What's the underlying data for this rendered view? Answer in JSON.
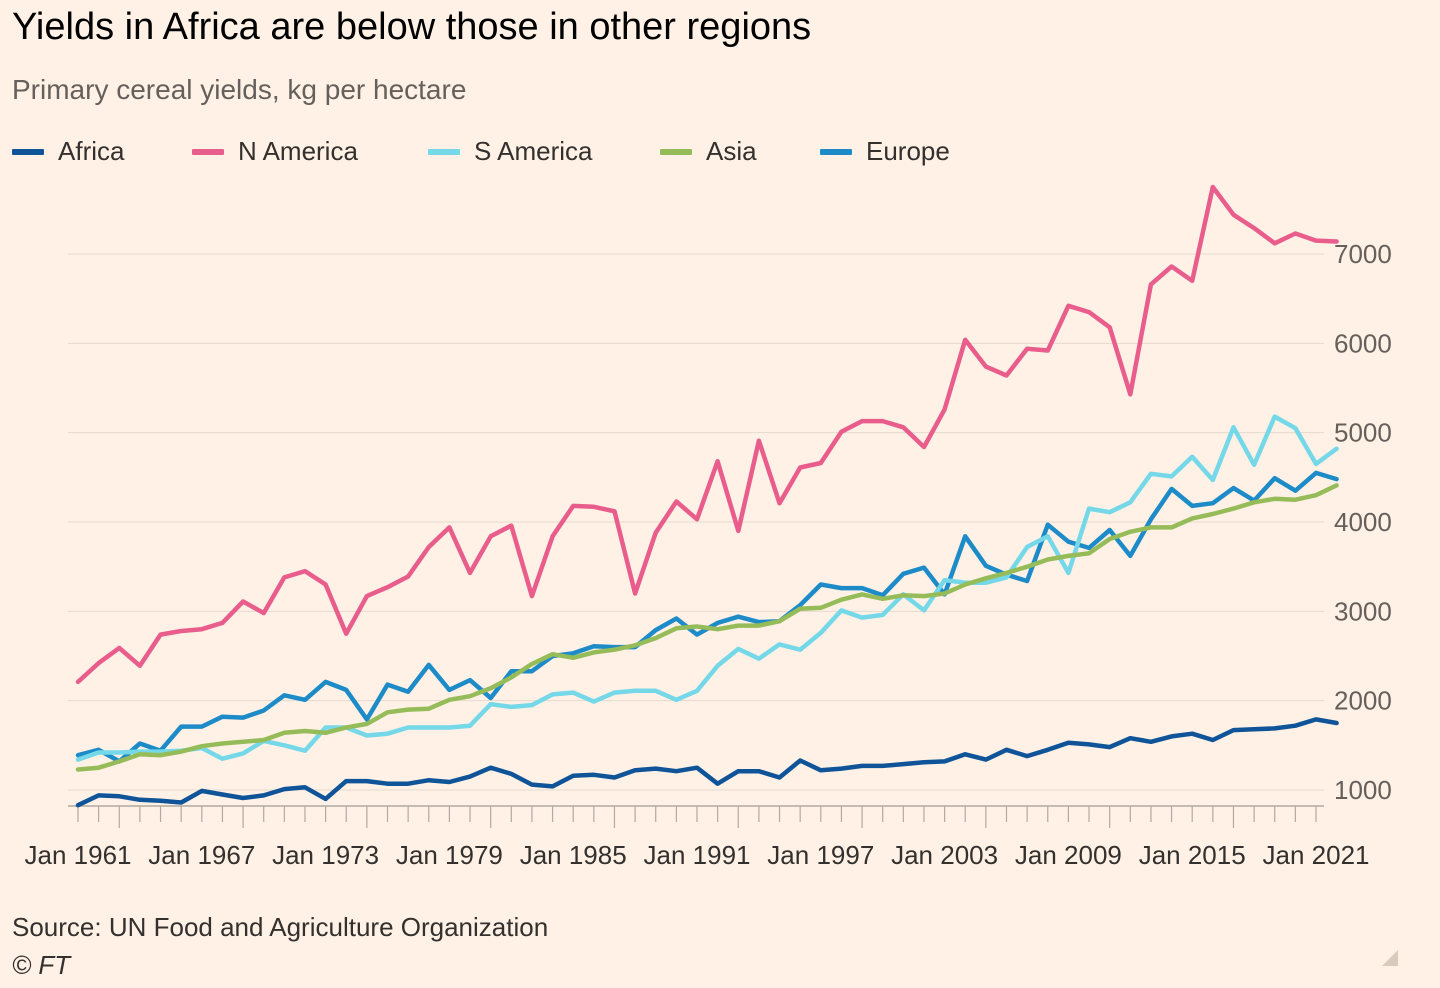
{
  "title": "Yields in Africa are below those in other regions",
  "subtitle": "Primary cereal yields, kg per hectare",
  "source": "Source: UN Food and Agriculture Organization",
  "credit": "© FT",
  "legend": [
    {
      "name": "Africa",
      "color": "#0f5499"
    },
    {
      "name": "N America",
      "color": "#e95d8c"
    },
    {
      "name": "S America",
      "color": "#75d8e8"
    },
    {
      "name": "Asia",
      "color": "#96bc59"
    },
    {
      "name": "Europe",
      "color": "#1e8bc9"
    }
  ],
  "chart_data": {
    "type": "line",
    "title": "Yields in Africa are below those in other regions",
    "subtitle": "Primary cereal yields, kg per hectare",
    "x_start": 1961,
    "x_end": 2021,
    "x_tick_labels": [
      "Jan 1961",
      "Jan 1967",
      "Jan 1973",
      "Jan 1979",
      "Jan 1985",
      "Jan 1991",
      "Jan 1997",
      "Jan 2003",
      "Jan 2009",
      "Jan 2015",
      "Jan 2021"
    ],
    "x_ticks": [
      1961,
      1967,
      1973,
      1979,
      1985,
      1991,
      1997,
      2003,
      2009,
      2015,
      2021
    ],
    "y_ticks": [
      1000,
      2000,
      3000,
      4000,
      5000,
      6000,
      7000
    ],
    "ylim": [
      820,
      7800
    ],
    "y_axis_side": "right",
    "grid": true,
    "legend_position": "top-left",
    "series": [
      {
        "name": "Africa",
        "color": "#0f5499",
        "values": [
          830,
          940,
          930,
          890,
          880,
          860,
          990,
          950,
          910,
          940,
          1010,
          1030,
          900,
          1100,
          1100,
          1070,
          1070,
          1110,
          1090,
          1150,
          1250,
          1180,
          1060,
          1040,
          1160,
          1170,
          1140,
          1220,
          1240,
          1210,
          1250,
          1070,
          1210,
          1210,
          1140,
          1330,
          1220,
          1240,
          1270,
          1270,
          1290,
          1310,
          1320,
          1400,
          1340,
          1450,
          1380,
          1450,
          1530,
          1510,
          1480,
          1580,
          1540,
          1600,
          1630,
          1560,
          1670,
          1680,
          1690,
          1720,
          1790,
          1750
        ]
      },
      {
        "name": "N America",
        "color": "#e95d8c",
        "values": [
          2210,
          2420,
          2590,
          2390,
          2740,
          2780,
          2800,
          2870,
          3110,
          2980,
          3380,
          3450,
          3300,
          2750,
          3170,
          3270,
          3390,
          3720,
          3940,
          3430,
          3840,
          3960,
          3170,
          3840,
          4180,
          4170,
          4120,
          3200,
          3880,
          4230,
          4030,
          4680,
          3900,
          4910,
          4210,
          4610,
          4660,
          5010,
          5130,
          5130,
          5060,
          4840,
          5260,
          6040,
          5740,
          5640,
          5940,
          5920,
          6420,
          6350,
          6180,
          5430,
          6660,
          6860,
          6700,
          7750,
          7440,
          7290,
          7120,
          7230,
          7150,
          7140
        ]
      },
      {
        "name": "S America",
        "color": "#75d8e8",
        "values": [
          1340,
          1420,
          1420,
          1430,
          1430,
          1440,
          1470,
          1350,
          1410,
          1550,
          1500,
          1440,
          1700,
          1700,
          1610,
          1630,
          1700,
          1700,
          1700,
          1720,
          1960,
          1930,
          1950,
          2070,
          2090,
          1990,
          2090,
          2110,
          2110,
          2010,
          2110,
          2390,
          2580,
          2470,
          2630,
          2570,
          2760,
          3010,
          2930,
          2960,
          3190,
          3010,
          3350,
          3320,
          3320,
          3380,
          3720,
          3840,
          3430,
          4150,
          4110,
          4220,
          4540,
          4510,
          4730,
          4470,
          5060,
          4640,
          5180,
          5050,
          4650,
          4820
        ]
      },
      {
        "name": "Asia",
        "color": "#96bc59",
        "values": [
          1230,
          1250,
          1320,
          1400,
          1390,
          1430,
          1490,
          1520,
          1540,
          1560,
          1640,
          1660,
          1640,
          1700,
          1740,
          1870,
          1900,
          1910,
          2010,
          2050,
          2140,
          2260,
          2410,
          2520,
          2480,
          2540,
          2570,
          2620,
          2700,
          2810,
          2830,
          2800,
          2840,
          2840,
          2890,
          3030,
          3040,
          3130,
          3190,
          3140,
          3180,
          3170,
          3200,
          3300,
          3370,
          3430,
          3500,
          3580,
          3620,
          3650,
          3810,
          3890,
          3940,
          3940,
          4040,
          4090,
          4150,
          4220,
          4260,
          4250,
          4300,
          4410
        ]
      },
      {
        "name": "Europe",
        "color": "#1e8bc9",
        "values": [
          1390,
          1450,
          1320,
          1520,
          1440,
          1710,
          1710,
          1820,
          1810,
          1890,
          2060,
          2010,
          2210,
          2120,
          1790,
          2180,
          2100,
          2400,
          2120,
          2230,
          2030,
          2330,
          2330,
          2500,
          2530,
          2610,
          2600,
          2600,
          2790,
          2920,
          2740,
          2870,
          2940,
          2880,
          2890,
          3070,
          3300,
          3260,
          3260,
          3180,
          3420,
          3490,
          3190,
          3840,
          3510,
          3410,
          3340,
          3970,
          3780,
          3710,
          3910,
          3620,
          4030,
          4370,
          4180,
          4210,
          4380,
          4240,
          4490,
          4350,
          4550,
          4480
        ]
      }
    ]
  }
}
